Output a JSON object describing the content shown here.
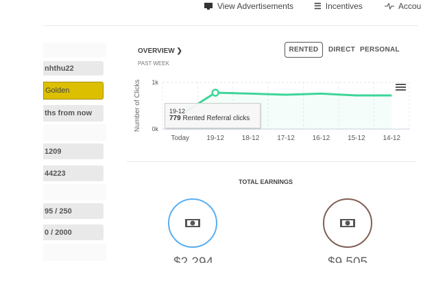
{
  "nav": [
    {
      "label": "View Advertisements",
      "icon": "monitor-icon"
    },
    {
      "label": "Incentives",
      "icon": "list-icon"
    },
    {
      "label": "Accou",
      "icon": "activity-icon"
    }
  ],
  "sidebar": {
    "rows": [
      "nhthu22",
      "Golden",
      "ths from now",
      "1209",
      "44223",
      "95 / 250",
      "0 / 2000"
    ]
  },
  "overview": {
    "title": "OVERVIEW",
    "subtitle": "PAST WEEK",
    "tabs": [
      "RENTED",
      "DIRECT",
      "PERSONAL"
    ],
    "active_tab": "RENTED"
  },
  "chart_data": {
    "type": "area",
    "title": "",
    "ylabel": "Number of Clicks",
    "xlabel": "",
    "ylim": [
      0,
      1000
    ],
    "yticks": [
      "0k",
      "1k"
    ],
    "categories": [
      "Today",
      "19-12",
      "18-12",
      "17-12",
      "16-12",
      "15-12",
      "14-12"
    ],
    "series": [
      {
        "name": "Rented Referral clicks",
        "color": "#3dd598",
        "values": [
          300,
          779,
          760,
          735,
          760,
          720,
          720
        ]
      }
    ],
    "tooltip": {
      "date": "19-12",
      "value": "779",
      "label": "Rented Referral clicks"
    }
  },
  "earnings": {
    "title": "TOTAL EARNINGS",
    "items": [
      {
        "amount": "$2,294",
        "color": "#5aaef0"
      },
      {
        "amount": "$9,505",
        "color": "#7f5f52"
      }
    ]
  }
}
